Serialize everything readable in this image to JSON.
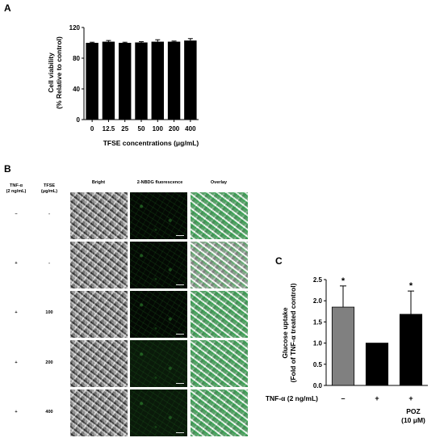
{
  "panels": {
    "a": "A",
    "b": "B",
    "c": "C"
  },
  "chart_data": [
    {
      "type": "bar",
      "panel": "A",
      "categories": [
        "0",
        "12.5",
        "25",
        "50",
        "100",
        "200",
        "400"
      ],
      "values": [
        100,
        101.5,
        100,
        100.5,
        101.5,
        101.5,
        103
      ],
      "errors": [
        0.8,
        1.5,
        0.8,
        1.0,
        2.5,
        0.8,
        2.5
      ],
      "xlabel": "TFSE concentrations (μg/mL)",
      "ylabel_line1": "Cell viability",
      "ylabel_line2": "(% Relative to control)",
      "ylim": [
        0,
        120
      ],
      "yticks": [
        "0",
        "40",
        "80",
        "120"
      ],
      "bar_color": "#000000"
    },
    {
      "type": "bar",
      "panel": "C",
      "categories": [
        "–",
        "+",
        "+"
      ],
      "values": [
        1.85,
        1.0,
        1.68
      ],
      "errors": [
        0.5,
        0,
        0.55
      ],
      "significance": [
        "*",
        "",
        "*"
      ],
      "bar_colors": [
        "#808080",
        "#000000",
        "#000000"
      ],
      "ylabel_line1": "Glucose uptake",
      "ylabel_line2": "(Fold of TNF-α treated control)",
      "ylim": [
        0,
        2.5
      ],
      "yticks": [
        "0.0",
        "0.5",
        "1.0",
        "1.5",
        "2.0",
        "2.5"
      ],
      "row_label": "TNF-α (2 ng/mL)",
      "extra_label_line1": "POZ",
      "extra_label_line2": "(10 μM)"
    }
  ],
  "panel_b": {
    "tnf_header_line1": "TNF-α",
    "tnf_header_line2": "(2 ng/mL)",
    "tfse_header_line1": "TFSE",
    "tfse_header_line2": "(μg/mL)",
    "col_headers": [
      "Bright",
      "2-NBDG fluorescence",
      "Overlay"
    ],
    "rows": [
      {
        "tnf": "–",
        "tfse": "-"
      },
      {
        "tnf": "+",
        "tfse": "-"
      },
      {
        "tnf": "+",
        "tfse": "100"
      },
      {
        "tnf": "+",
        "tfse": "200"
      },
      {
        "tnf": "+",
        "tfse": "400"
      }
    ]
  }
}
